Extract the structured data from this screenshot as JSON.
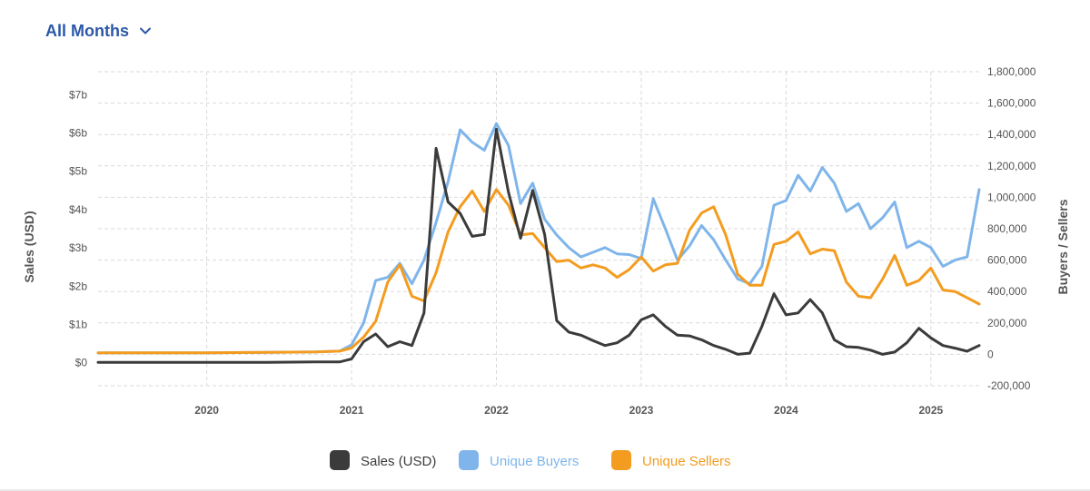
{
  "filter": {
    "label": "All Months",
    "icon": "chevron-down-icon"
  },
  "colors": {
    "sales": "#3b3b3b",
    "buyers": "#7fb5ea",
    "sellers": "#f39c1f",
    "grid": "#d9d9d9",
    "accent": "#2b58a8"
  },
  "chart_data": {
    "type": "line",
    "title": "",
    "ylabel_left": "Sales (USD)",
    "ylabel_right": "Buyers / Sellers",
    "x_axis_ticks": [
      "2020",
      "2021",
      "2022",
      "2023",
      "2024",
      "2025"
    ],
    "left_axis_ticks": [
      "$0",
      "$1b",
      "$2b",
      "$3b",
      "$4b",
      "$5b",
      "$6b",
      "$7b"
    ],
    "right_axis_ticks": [
      "-200,000",
      "0",
      "200,000",
      "400,000",
      "600,000",
      "800,000",
      "1,000,000",
      "1,200,000",
      "1,400,000",
      "1,600,000",
      "1,800,000"
    ],
    "left_ylim": [
      -0.6,
      7.6
    ],
    "right_ylim": [
      -200000,
      1800000
    ],
    "x_range": [
      "2019-04",
      "2025-05"
    ],
    "grid": true,
    "legend_position": "bottom-center",
    "series": [
      {
        "name": "Sales (USD)",
        "axis": "left",
        "color_key": "sales",
        "points": [
          [
            "2019-04",
            0.01
          ],
          [
            "2020-01",
            0.01
          ],
          [
            "2020-06",
            0.01
          ],
          [
            "2020-10",
            0.02
          ],
          [
            "2020-12",
            0.02
          ],
          [
            "2021-01",
            0.1
          ],
          [
            "2021-02",
            0.55
          ],
          [
            "2021-03",
            0.75
          ],
          [
            "2021-04",
            0.42
          ],
          [
            "2021-05",
            0.55
          ],
          [
            "2021-06",
            0.45
          ],
          [
            "2021-07",
            1.3
          ],
          [
            "2021-08",
            5.6
          ],
          [
            "2021-09",
            4.2
          ],
          [
            "2021-10",
            3.9
          ],
          [
            "2021-11",
            3.3
          ],
          [
            "2021-12",
            3.35
          ],
          [
            "2022-01",
            6.1
          ],
          [
            "2022-02",
            4.45
          ],
          [
            "2022-03",
            3.25
          ],
          [
            "2022-04",
            4.5
          ],
          [
            "2022-05",
            3.35
          ],
          [
            "2022-06",
            1.1
          ],
          [
            "2022-07",
            0.8
          ],
          [
            "2022-08",
            0.72
          ],
          [
            "2022-09",
            0.58
          ],
          [
            "2022-10",
            0.45
          ],
          [
            "2022-11",
            0.52
          ],
          [
            "2022-12",
            0.72
          ],
          [
            "2023-01",
            1.12
          ],
          [
            "2023-02",
            1.25
          ],
          [
            "2023-03",
            0.95
          ],
          [
            "2023-04",
            0.72
          ],
          [
            "2023-05",
            0.7
          ],
          [
            "2023-06",
            0.6
          ],
          [
            "2023-07",
            0.45
          ],
          [
            "2023-08",
            0.35
          ],
          [
            "2023-09",
            0.22
          ],
          [
            "2023-10",
            0.25
          ],
          [
            "2023-11",
            0.95
          ],
          [
            "2023-12",
            1.8
          ],
          [
            "2024-01",
            1.25
          ],
          [
            "2024-02",
            1.3
          ],
          [
            "2024-03",
            1.65
          ],
          [
            "2024-04",
            1.3
          ],
          [
            "2024-05",
            0.6
          ],
          [
            "2024-06",
            0.42
          ],
          [
            "2024-07",
            0.4
          ],
          [
            "2024-08",
            0.33
          ],
          [
            "2024-09",
            0.22
          ],
          [
            "2024-10",
            0.28
          ],
          [
            "2024-11",
            0.52
          ],
          [
            "2024-12",
            0.9
          ],
          [
            "2025-01",
            0.65
          ],
          [
            "2025-02",
            0.45
          ],
          [
            "2025-03",
            0.38
          ],
          [
            "2025-04",
            0.3
          ],
          [
            "2025-05",
            0.45
          ]
        ]
      },
      {
        "name": "Unique Buyers",
        "axis": "right",
        "color_key": "buyers",
        "points": [
          [
            "2019-04",
            10000
          ],
          [
            "2020-01",
            10000
          ],
          [
            "2020-06",
            12000
          ],
          [
            "2020-10",
            15000
          ],
          [
            "2020-12",
            20000
          ],
          [
            "2021-01",
            60000
          ],
          [
            "2021-02",
            200000
          ],
          [
            "2021-03",
            470000
          ],
          [
            "2021-04",
            490000
          ],
          [
            "2021-05",
            580000
          ],
          [
            "2021-06",
            450000
          ],
          [
            "2021-07",
            600000
          ],
          [
            "2021-08",
            840000
          ],
          [
            "2021-09",
            1100000
          ],
          [
            "2021-10",
            1430000
          ],
          [
            "2021-11",
            1350000
          ],
          [
            "2021-12",
            1300000
          ],
          [
            "2022-01",
            1470000
          ],
          [
            "2022-02",
            1330000
          ],
          [
            "2022-03",
            960000
          ],
          [
            "2022-04",
            1090000
          ],
          [
            "2022-05",
            860000
          ],
          [
            "2022-06",
            760000
          ],
          [
            "2022-07",
            680000
          ],
          [
            "2022-08",
            620000
          ],
          [
            "2022-09",
            650000
          ],
          [
            "2022-10",
            680000
          ],
          [
            "2022-11",
            640000
          ],
          [
            "2022-12",
            635000
          ],
          [
            "2023-01",
            610000
          ],
          [
            "2023-02",
            990000
          ],
          [
            "2023-03",
            800000
          ],
          [
            "2023-04",
            600000
          ],
          [
            "2023-05",
            690000
          ],
          [
            "2023-06",
            820000
          ],
          [
            "2023-07",
            730000
          ],
          [
            "2023-08",
            600000
          ],
          [
            "2023-09",
            480000
          ],
          [
            "2023-10",
            450000
          ],
          [
            "2023-11",
            560000
          ],
          [
            "2023-12",
            950000
          ],
          [
            "2024-01",
            980000
          ],
          [
            "2024-02",
            1140000
          ],
          [
            "2024-03",
            1040000
          ],
          [
            "2024-04",
            1190000
          ],
          [
            "2024-05",
            1090000
          ],
          [
            "2024-06",
            910000
          ],
          [
            "2024-07",
            960000
          ],
          [
            "2024-08",
            800000
          ],
          [
            "2024-09",
            870000
          ],
          [
            "2024-10",
            970000
          ],
          [
            "2024-11",
            680000
          ],
          [
            "2024-12",
            720000
          ],
          [
            "2025-01",
            680000
          ],
          [
            "2025-02",
            560000
          ],
          [
            "2025-03",
            600000
          ],
          [
            "2025-04",
            620000
          ],
          [
            "2025-05",
            1050000
          ]
        ]
      },
      {
        "name": "Unique Sellers",
        "axis": "right",
        "color_key": "sellers",
        "points": [
          [
            "2019-04",
            10000
          ],
          [
            "2020-01",
            10000
          ],
          [
            "2020-06",
            12000
          ],
          [
            "2020-10",
            15000
          ],
          [
            "2020-12",
            20000
          ],
          [
            "2021-01",
            40000
          ],
          [
            "2021-02",
            110000
          ],
          [
            "2021-03",
            210000
          ],
          [
            "2021-04",
            460000
          ],
          [
            "2021-05",
            570000
          ],
          [
            "2021-06",
            370000
          ],
          [
            "2021-07",
            340000
          ],
          [
            "2021-08",
            520000
          ],
          [
            "2021-09",
            780000
          ],
          [
            "2021-10",
            940000
          ],
          [
            "2021-11",
            1040000
          ],
          [
            "2021-12",
            910000
          ],
          [
            "2022-01",
            1050000
          ],
          [
            "2022-02",
            950000
          ],
          [
            "2022-03",
            760000
          ],
          [
            "2022-04",
            770000
          ],
          [
            "2022-05",
            680000
          ],
          [
            "2022-06",
            590000
          ],
          [
            "2022-07",
            600000
          ],
          [
            "2022-08",
            550000
          ],
          [
            "2022-09",
            570000
          ],
          [
            "2022-10",
            550000
          ],
          [
            "2022-11",
            490000
          ],
          [
            "2022-12",
            540000
          ],
          [
            "2023-01",
            620000
          ],
          [
            "2023-02",
            530000
          ],
          [
            "2023-03",
            570000
          ],
          [
            "2023-04",
            580000
          ],
          [
            "2023-05",
            790000
          ],
          [
            "2023-06",
            900000
          ],
          [
            "2023-07",
            940000
          ],
          [
            "2023-08",
            760000
          ],
          [
            "2023-09",
            510000
          ],
          [
            "2023-10",
            440000
          ],
          [
            "2023-11",
            440000
          ],
          [
            "2023-12",
            700000
          ],
          [
            "2024-01",
            720000
          ],
          [
            "2024-02",
            780000
          ],
          [
            "2024-03",
            640000
          ],
          [
            "2024-04",
            670000
          ],
          [
            "2024-05",
            660000
          ],
          [
            "2024-06",
            460000
          ],
          [
            "2024-07",
            370000
          ],
          [
            "2024-08",
            360000
          ],
          [
            "2024-09",
            480000
          ],
          [
            "2024-10",
            630000
          ],
          [
            "2024-11",
            440000
          ],
          [
            "2024-12",
            470000
          ],
          [
            "2025-01",
            550000
          ],
          [
            "2025-02",
            410000
          ],
          [
            "2025-03",
            400000
          ],
          [
            "2025-04",
            360000
          ],
          [
            "2025-05",
            320000
          ]
        ]
      }
    ]
  }
}
